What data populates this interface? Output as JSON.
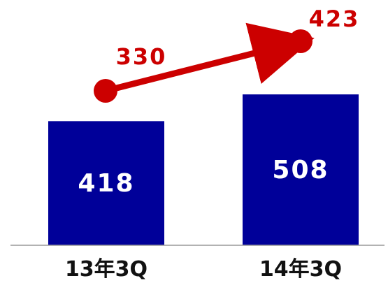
{
  "chart_data": {
    "type": "bar",
    "categories": [
      "13年3Q",
      "14年3Q"
    ],
    "series": [
      {
        "type": "bar",
        "values": [
          418,
          508
        ],
        "color": "#000099",
        "labels": [
          "418",
          "508"
        ]
      },
      {
        "type": "line",
        "values": [
          330,
          423
        ],
        "color": "#cc0000",
        "labels": [
          "330",
          "423"
        ]
      }
    ],
    "bar_ylim": [
      0,
      600
    ],
    "line_ylim": [
      0,
      500
    ],
    "grid": false,
    "legend": "none",
    "title": "",
    "xlabel": "",
    "ylabel": ""
  }
}
